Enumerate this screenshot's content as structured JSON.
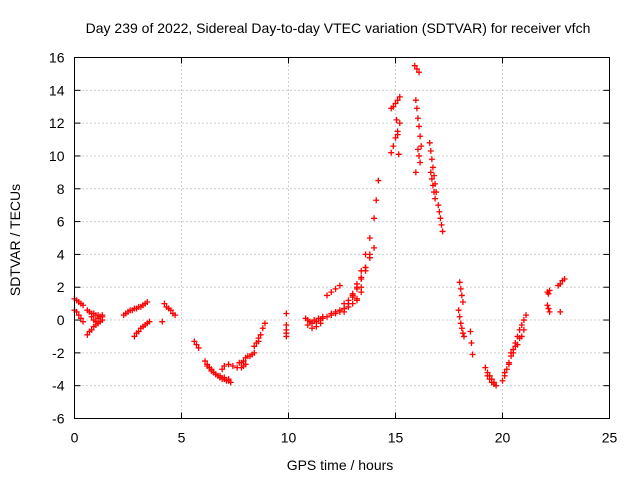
{
  "chart_data": {
    "type": "scatter",
    "title": "Day 239 of 2022, Sidereal Day-to-day VTEC variation (SDTVAR) for receiver vfch",
    "xlabel": "GPS time / hours",
    "ylabel": "SDTVAR / TECUs",
    "xlim": [
      0,
      25
    ],
    "ylim": [
      -6,
      16
    ],
    "xticks": [
      0,
      5,
      10,
      15,
      20,
      25
    ],
    "yticks": [
      -6,
      -4,
      -2,
      0,
      2,
      4,
      6,
      8,
      10,
      12,
      14,
      16
    ],
    "grid": true,
    "marker": "+",
    "color": "#ff0000",
    "segments": [
      {
        "name": "s01",
        "x": [
          0.0,
          0.1,
          0.2,
          0.3,
          0.4
        ],
        "y": [
          1.3,
          1.2,
          1.1,
          1.0,
          0.9
        ]
      },
      {
        "name": "s02",
        "x": [
          0.0,
          0.1,
          0.2,
          0.3,
          0.4
        ],
        "y": [
          0.6,
          0.5,
          0.3,
          0.1,
          -0.1
        ]
      },
      {
        "name": "s03",
        "x": [
          0.6,
          0.7,
          0.8,
          0.9,
          1.0,
          1.1,
          1.2,
          1.3
        ],
        "y": [
          0.6,
          0.5,
          0.4,
          0.4,
          0.3,
          0.3,
          0.2,
          0.2
        ]
      },
      {
        "name": "s04",
        "x": [
          0.6,
          0.7,
          0.8,
          0.9,
          1.0,
          1.1,
          1.2,
          1.3
        ],
        "y": [
          -0.9,
          -0.7,
          -0.6,
          -0.4,
          -0.3,
          -0.2,
          -0.1,
          0.0
        ]
      },
      {
        "name": "s05",
        "x": [
          0.8,
          0.9,
          1.0,
          1.1,
          1.2,
          1.3
        ],
        "y": [
          0.2,
          0.0,
          -0.1,
          0.1,
          0.2,
          0.3
        ]
      },
      {
        "name": "s06",
        "x": [
          2.3,
          2.5,
          2.7,
          2.9,
          3.1,
          3.3,
          3.4
        ],
        "y": [
          0.3,
          0.5,
          0.6,
          0.7,
          0.8,
          1.0,
          1.1
        ]
      },
      {
        "name": "s07",
        "x": [
          2.4,
          2.6,
          2.8,
          3.0,
          3.2
        ],
        "y": [
          0.4,
          0.6,
          0.7,
          0.8,
          0.9
        ]
      },
      {
        "name": "s08",
        "x": [
          2.8,
          2.9,
          3.0,
          3.1,
          3.2,
          3.3,
          3.4,
          3.5
        ],
        "y": [
          -1.0,
          -0.8,
          -0.7,
          -0.5,
          -0.4,
          -0.3,
          -0.2,
          -0.1
        ]
      },
      {
        "name": "s09",
        "x": [
          4.2,
          4.3,
          4.4,
          4.5,
          4.6,
          4.7
        ],
        "y": [
          1.0,
          0.8,
          0.7,
          0.6,
          0.4,
          0.3
        ]
      },
      {
        "name": "s10",
        "x": [
          4.1
        ],
        "y": [
          -0.1
        ]
      },
      {
        "name": "s11",
        "x": [
          5.6,
          5.7,
          5.8
        ],
        "y": [
          -1.3,
          -1.5,
          -1.7
        ]
      },
      {
        "name": "s12",
        "x": [
          6.1,
          6.2,
          6.3,
          6.4,
          6.5,
          6.6,
          6.7,
          6.8,
          6.9,
          7.0,
          7.1,
          7.2,
          7.3
        ],
        "y": [
          -2.5,
          -2.7,
          -2.9,
          -3.0,
          -3.2,
          -3.3,
          -3.4,
          -3.5,
          -3.6,
          -3.6,
          -3.7,
          -3.7,
          -3.8
        ]
      },
      {
        "name": "s13",
        "x": [
          6.2,
          6.4,
          6.6,
          6.8,
          7.0,
          7.2
        ],
        "y": [
          -2.8,
          -3.1,
          -3.3,
          -3.4,
          -3.5,
          -3.6
        ]
      },
      {
        "name": "s14",
        "x": [
          6.9,
          7.0,
          7.2,
          7.4,
          7.6,
          7.8,
          7.9,
          8.0
        ],
        "y": [
          -3.0,
          -2.8,
          -2.7,
          -2.8,
          -2.9,
          -2.9,
          -2.8,
          -2.7
        ]
      },
      {
        "name": "s15",
        "x": [
          7.7,
          7.8,
          7.9,
          8.0,
          8.1,
          8.2,
          8.3,
          8.4
        ],
        "y": [
          -2.6,
          -2.6,
          -2.5,
          -2.3,
          -2.2,
          -2.2,
          -2.1,
          -2.0
        ]
      },
      {
        "name": "s16",
        "x": [
          8.6,
          8.7,
          8.8,
          8.9
        ],
        "y": [
          -1.3,
          -0.9,
          -0.5,
          -0.2
        ]
      },
      {
        "name": "s17",
        "x": [
          8.4,
          8.5,
          8.6
        ],
        "y": [
          -1.6,
          -1.4,
          -1.1
        ]
      },
      {
        "name": "s18",
        "x": [
          9.9,
          9.9,
          9.9,
          9.9,
          9.9
        ],
        "y": [
          0.4,
          -0.3,
          -0.6,
          -0.8,
          -1.0
        ]
      },
      {
        "name": "s19",
        "x": [
          10.8,
          10.9,
          11.0,
          11.1,
          11.2,
          11.3,
          11.4,
          11.5,
          11.6
        ],
        "y": [
          0.1,
          0.0,
          -0.1,
          -0.2,
          0.0,
          -0.1,
          0.1,
          0.0,
          0.2
        ]
      },
      {
        "name": "s20",
        "x": [
          10.9,
          11.1,
          11.3,
          11.5
        ],
        "y": [
          -0.3,
          -0.5,
          -0.4,
          -0.2
        ]
      },
      {
        "name": "s21",
        "x": [
          11.6,
          11.8,
          12.0,
          12.2,
          12.4,
          12.6,
          12.8,
          13.0,
          13.2,
          13.4,
          13.6,
          13.8,
          14.0,
          14.1,
          14.2
        ],
        "y": [
          0.1,
          0.2,
          0.3,
          0.4,
          0.5,
          0.7,
          1.0,
          1.6,
          2.2,
          3.0,
          4.0,
          5.0,
          6.2,
          7.3,
          8.5
        ]
      },
      {
        "name": "s22",
        "x": [
          12.0,
          12.2,
          12.4,
          12.6,
          12.8,
          13.0,
          13.2,
          13.4
        ],
        "y": [
          0.4,
          0.5,
          0.6,
          0.7,
          0.8,
          1.0,
          1.3,
          1.7
        ]
      },
      {
        "name": "s23",
        "x": [
          12.6,
          12.8,
          13.0,
          13.2,
          13.4,
          13.6,
          13.8
        ],
        "y": [
          1.0,
          1.2,
          1.5,
          1.9,
          2.5,
          3.2,
          4.0
        ]
      },
      {
        "name": "s24",
        "x": [
          12.6,
          12.8,
          13.0,
          13.2,
          13.4,
          13.6,
          13.8,
          14.0
        ],
        "y": [
          0.5,
          1.0,
          1.4,
          2.0,
          2.6,
          3.2,
          3.8,
          4.4
        ]
      },
      {
        "name": "s25",
        "x": [
          13.2,
          13.4,
          13.6,
          13.8
        ],
        "y": [
          1.2,
          2.0,
          3.0,
          3.8
        ]
      },
      {
        "name": "s26",
        "x": [
          11.8,
          12.0,
          12.2,
          12.4
        ],
        "y": [
          1.5,
          1.7,
          1.9,
          2.1
        ]
      },
      {
        "name": "s27",
        "x": [
          14.8,
          14.9,
          15.0,
          15.1,
          15.2
        ],
        "y": [
          10.2,
          10.6,
          11.1,
          11.5,
          12.0
        ]
      },
      {
        "name": "s28",
        "x": [
          14.8,
          14.9,
          15.0,
          15.1,
          15.2
        ],
        "y": [
          12.9,
          13.0,
          13.2,
          13.4,
          13.6
        ]
      },
      {
        "name": "s29",
        "x": [
          15.05,
          15.1,
          15.15
        ],
        "y": [
          12.2,
          11.3,
          10.1
        ]
      },
      {
        "name": "s30",
        "x": [
          15.9,
          16.0,
          16.1
        ],
        "y": [
          15.5,
          15.3,
          15.1
        ]
      },
      {
        "name": "s31",
        "x": [
          15.95,
          16.0,
          16.05,
          16.1,
          16.15,
          16.2
        ],
        "y": [
          13.4,
          12.9,
          12.3,
          11.8,
          11.2,
          10.6
        ]
      },
      {
        "name": "s32",
        "x": [
          16.05,
          16.1,
          16.15
        ],
        "y": [
          10.4,
          10.0,
          9.6
        ]
      },
      {
        "name": "s33",
        "x": [
          15.95
        ],
        "y": [
          9.0
        ]
      },
      {
        "name": "s34",
        "x": [
          16.6,
          16.65,
          16.7,
          16.75,
          16.8,
          16.85,
          16.9
        ],
        "y": [
          10.8,
          10.3,
          9.8,
          9.3,
          8.8,
          8.3,
          7.8
        ]
      },
      {
        "name": "s35",
        "x": [
          16.65,
          16.7,
          16.75,
          16.8,
          16.85
        ],
        "y": [
          9.0,
          8.6,
          8.2,
          7.8,
          7.4
        ]
      },
      {
        "name": "s36",
        "x": [
          17.0,
          17.05,
          17.1,
          17.15,
          17.2
        ],
        "y": [
          7.0,
          6.6,
          6.2,
          5.8,
          5.4
        ]
      },
      {
        "name": "s37",
        "x": [
          18.0,
          18.05,
          18.1,
          18.15
        ],
        "y": [
          2.3,
          1.9,
          1.5,
          1.1
        ]
      },
      {
        "name": "s38",
        "x": [
          17.95,
          18.0,
          18.05,
          18.1,
          18.15,
          18.2
        ],
        "y": [
          0.6,
          0.2,
          -0.2,
          -0.5,
          -0.8,
          -1.0
        ]
      },
      {
        "name": "s39",
        "x": [
          18.5,
          18.55,
          18.6
        ],
        "y": [
          -0.7,
          -1.4,
          -2.1
        ]
      },
      {
        "name": "s40",
        "x": [
          19.2,
          19.3,
          19.4,
          19.5,
          19.6,
          19.7
        ],
        "y": [
          -2.9,
          -3.2,
          -3.4,
          -3.6,
          -3.8,
          -4.0
        ]
      },
      {
        "name": "s41",
        "x": [
          19.3,
          19.4,
          19.5,
          19.6
        ],
        "y": [
          -3.4,
          -3.6,
          -3.8,
          -3.9
        ]
      },
      {
        "name": "s42",
        "x": [
          20.0,
          20.1,
          20.2,
          20.3,
          20.4,
          20.5,
          20.6,
          20.7,
          20.8,
          20.9,
          21.0,
          21.1
        ],
        "y": [
          -3.7,
          -3.4,
          -3.0,
          -2.6,
          -2.2,
          -1.8,
          -1.4,
          -1.0,
          -0.6,
          -0.3,
          0.0,
          0.3
        ]
      },
      {
        "name": "s43",
        "x": [
          20.1,
          20.3,
          20.5,
          20.7,
          20.9
        ],
        "y": [
          -3.2,
          -2.7,
          -2.0,
          -1.5,
          -1.0
        ]
      },
      {
        "name": "s44",
        "x": [
          20.4,
          20.6,
          20.8,
          21.0
        ],
        "y": [
          -2.0,
          -1.6,
          -1.1,
          -0.6
        ]
      },
      {
        "name": "s45",
        "x": [
          22.1,
          22.15,
          22.2
        ],
        "y": [
          1.7,
          1.6,
          1.8
        ]
      },
      {
        "name": "s46",
        "x": [
          22.1,
          22.15,
          22.2
        ],
        "y": [
          0.9,
          0.7,
          0.5
        ]
      },
      {
        "name": "s47",
        "x": [
          22.6,
          22.7,
          22.8,
          22.9
        ],
        "y": [
          2.1,
          2.2,
          2.4,
          2.5
        ]
      },
      {
        "name": "s48",
        "x": [
          22.7
        ],
        "y": [
          0.5
        ]
      }
    ]
  }
}
